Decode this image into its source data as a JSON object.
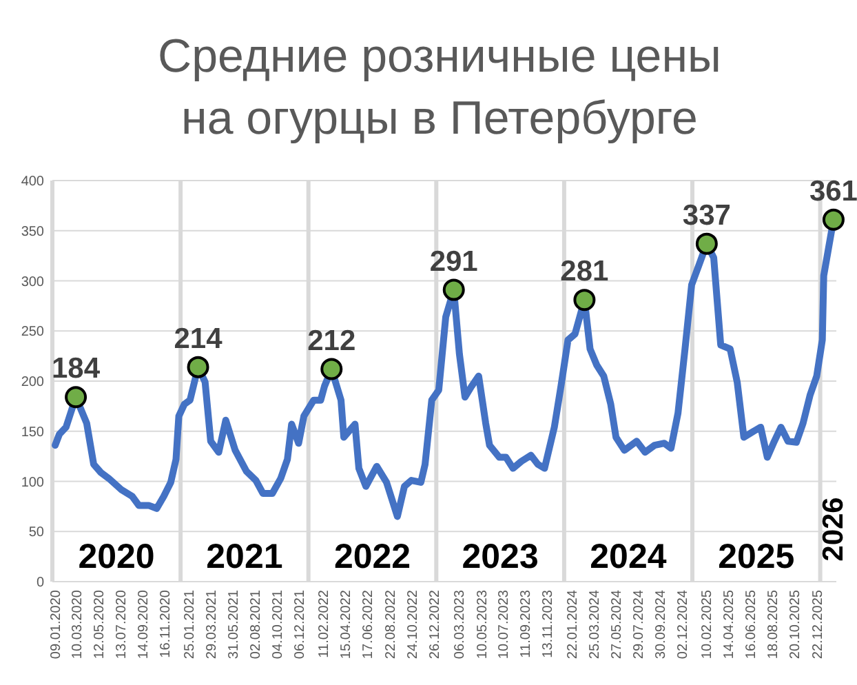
{
  "chart_data": {
    "type": "line",
    "title": "Средние розничные цены\nна огурцы в Петербурге",
    "xlim": [
      "2020-01-01",
      "2026-02-16"
    ],
    "ylim": [
      0,
      400
    ],
    "yticks": [
      0,
      50,
      100,
      150,
      200,
      250,
      300,
      350,
      400
    ],
    "xticks": [
      {
        "value": "2020-01-09",
        "label": "09.01.2020"
      },
      {
        "value": "2020-03-10",
        "label": "10.03.2020"
      },
      {
        "value": "2020-05-12",
        "label": "12.05.2020"
      },
      {
        "value": "2020-07-13",
        "label": "13.07.2020"
      },
      {
        "value": "2020-09-14",
        "label": "14.09.2020"
      },
      {
        "value": "2020-11-16",
        "label": "16.11.2020"
      },
      {
        "value": "2021-01-25",
        "label": "25.01.2021"
      },
      {
        "value": "2021-03-29",
        "label": "29.03.2021"
      },
      {
        "value": "2021-05-31",
        "label": "31.05.2021"
      },
      {
        "value": "2021-08-02",
        "label": "02.08.2021"
      },
      {
        "value": "2021-10-04",
        "label": "04.10.2021"
      },
      {
        "value": "2021-12-06",
        "label": "06.12.2021"
      },
      {
        "value": "2022-02-11",
        "label": "11.02.2022"
      },
      {
        "value": "2022-04-15",
        "label": "15.04.2022"
      },
      {
        "value": "2022-06-17",
        "label": "17.06.2022"
      },
      {
        "value": "2022-08-22",
        "label": "22.08.2022"
      },
      {
        "value": "2022-10-24",
        "label": "24.10.2022"
      },
      {
        "value": "2022-12-26",
        "label": "26.12.2022"
      },
      {
        "value": "2023-03-06",
        "label": "06.03.2023"
      },
      {
        "value": "2023-05-10",
        "label": "10.05.2023"
      },
      {
        "value": "2023-07-10",
        "label": "10.07.2023"
      },
      {
        "value": "2023-09-11",
        "label": "11.09.2023"
      },
      {
        "value": "2023-11-13",
        "label": "13.11.2023"
      },
      {
        "value": "2024-01-22",
        "label": "22.01.2024"
      },
      {
        "value": "2024-03-25",
        "label": "25.03.2024"
      },
      {
        "value": "2024-05-27",
        "label": "27.05.2024"
      },
      {
        "value": "2024-07-29",
        "label": "29.07.2024"
      },
      {
        "value": "2024-09-30",
        "label": "30.09.2024"
      },
      {
        "value": "2024-12-02",
        "label": "02.12.2024"
      },
      {
        "value": "2025-02-10",
        "label": "10.02.2025"
      },
      {
        "value": "2025-04-14",
        "label": "14.04.2025"
      },
      {
        "value": "2025-06-16",
        "label": "16.06.2025"
      },
      {
        "value": "2025-08-18",
        "label": "18.08.2025"
      },
      {
        "value": "2025-10-20",
        "label": "20.10.2025"
      },
      {
        "value": "2025-12-22",
        "label": "22.12.2025"
      }
    ],
    "grid": "y",
    "series": [
      {
        "color": "#4472c4",
        "marker": "none",
        "line_style": "solid",
        "x": [
          "2020-01-09",
          "2020-01-21",
          "2020-02-09",
          "2020-03-08",
          "2020-04-08",
          "2020-04-28",
          "2020-05-18",
          "2020-06-10",
          "2020-07-15",
          "2020-08-16",
          "2020-09-04",
          "2020-10-02",
          "2020-10-25",
          "2020-11-14",
          "2020-12-04",
          "2020-12-19",
          "2020-12-27",
          "2021-01-12",
          "2021-01-28",
          "2021-02-20",
          "2021-03-12",
          "2021-03-28",
          "2021-04-20",
          "2021-05-10",
          "2021-06-06",
          "2021-07-08",
          "2021-08-04",
          "2021-08-24",
          "2021-09-20",
          "2021-10-14",
          "2021-11-02",
          "2021-11-14",
          "2021-12-04",
          "2021-12-19",
          "2022-01-16",
          "2022-02-05",
          "2022-02-16",
          "2022-03-08",
          "2022-04-04",
          "2022-04-12",
          "2022-05-14",
          "2022-05-25",
          "2022-06-14",
          "2022-07-15",
          "2022-08-12",
          "2022-09-12",
          "2022-10-02",
          "2022-10-22",
          "2022-11-18",
          "2022-11-30",
          "2022-12-19",
          "2023-01-08",
          "2023-01-28",
          "2023-02-20",
          "2023-03-08",
          "2023-03-24",
          "2023-04-12",
          "2023-05-02",
          "2023-05-22",
          "2023-06-02",
          "2023-06-30",
          "2023-07-19",
          "2023-08-08",
          "2023-09-01",
          "2023-09-28",
          "2023-10-18",
          "2023-11-06",
          "2023-12-04",
          "2023-12-23",
          "2024-01-12",
          "2024-02-01",
          "2024-02-28",
          "2024-03-15",
          "2024-04-03",
          "2024-04-23",
          "2024-05-13",
          "2024-05-28",
          "2024-06-21",
          "2024-07-26",
          "2024-08-19",
          "2024-09-15",
          "2024-10-13",
          "2024-11-01",
          "2024-11-21",
          "2024-12-11",
          "2024-12-30",
          "2025-01-19",
          "2025-02-11",
          "2025-03-03",
          "2025-03-23",
          "2025-04-19",
          "2025-05-09",
          "2025-05-28",
          "2025-06-25",
          "2025-07-15",
          "2025-08-03",
          "2025-08-23",
          "2025-09-11",
          "2025-10-01",
          "2025-10-25",
          "2025-11-13",
          "2025-12-03",
          "2025-12-22",
          "2026-01-07",
          "2026-01-11",
          "2026-02-08"
        ],
        "values": [
          136,
          147,
          154,
          184,
          158,
          117,
          109,
          103,
          92,
          85,
          76,
          76,
          73,
          85,
          99,
          122,
          165,
          177,
          181,
          214,
          199,
          140,
          129,
          161,
          131,
          110,
          101,
          88,
          88,
          103,
          122,
          157,
          138,
          165,
          181,
          181,
          195,
          212,
          181,
          144,
          157,
          113,
          95,
          115,
          99,
          65,
          95,
          101,
          99,
          117,
          181,
          191,
          264,
          291,
          227,
          184,
          195,
          205,
          158,
          136,
          124,
          124,
          113,
          120,
          126,
          117,
          113,
          154,
          195,
          241,
          247,
          281,
          232,
          216,
          205,
          177,
          144,
          131,
          140,
          129,
          136,
          138,
          133,
          168,
          232,
          296,
          315,
          337,
          323,
          236,
          232,
          199,
          144,
          150,
          154,
          124,
          140,
          154,
          140,
          139,
          158,
          186,
          205,
          241,
          305,
          361
        ]
      },
      {
        "type": "scatter",
        "color": "#70ad47",
        "marker": "circle",
        "x": [
          "2020-03-08",
          "2021-02-20",
          "2022-03-08",
          "2023-02-20",
          "2024-02-28",
          "2025-02-11",
          "2026-02-08"
        ],
        "values": [
          184,
          214,
          212,
          291,
          281,
          337,
          361
        ],
        "value_labels": [
          "184",
          "214",
          "212",
          "291",
          "281",
          "337",
          "361"
        ]
      }
    ],
    "ref_lines": [
      {
        "axis": "x",
        "value": "2020-01-01",
        "color": "#d9d9d9",
        "label": "2020"
      },
      {
        "axis": "x",
        "value": "2021-01-01",
        "color": "#d9d9d9",
        "label": "2021"
      },
      {
        "axis": "x",
        "value": "2022-01-01",
        "color": "#d9d9d9",
        "label": "2022"
      },
      {
        "axis": "x",
        "value": "2023-01-01",
        "color": "#d9d9d9",
        "label": "2023"
      },
      {
        "axis": "x",
        "value": "2024-01-01",
        "color": "#d9d9d9",
        "label": "2024"
      },
      {
        "axis": "x",
        "value": "2025-01-01",
        "color": "#d9d9d9",
        "label": "2025"
      },
      {
        "axis": "x",
        "value": "2026-01-01",
        "color": "#d9d9d9",
        "label": "2026"
      }
    ]
  }
}
